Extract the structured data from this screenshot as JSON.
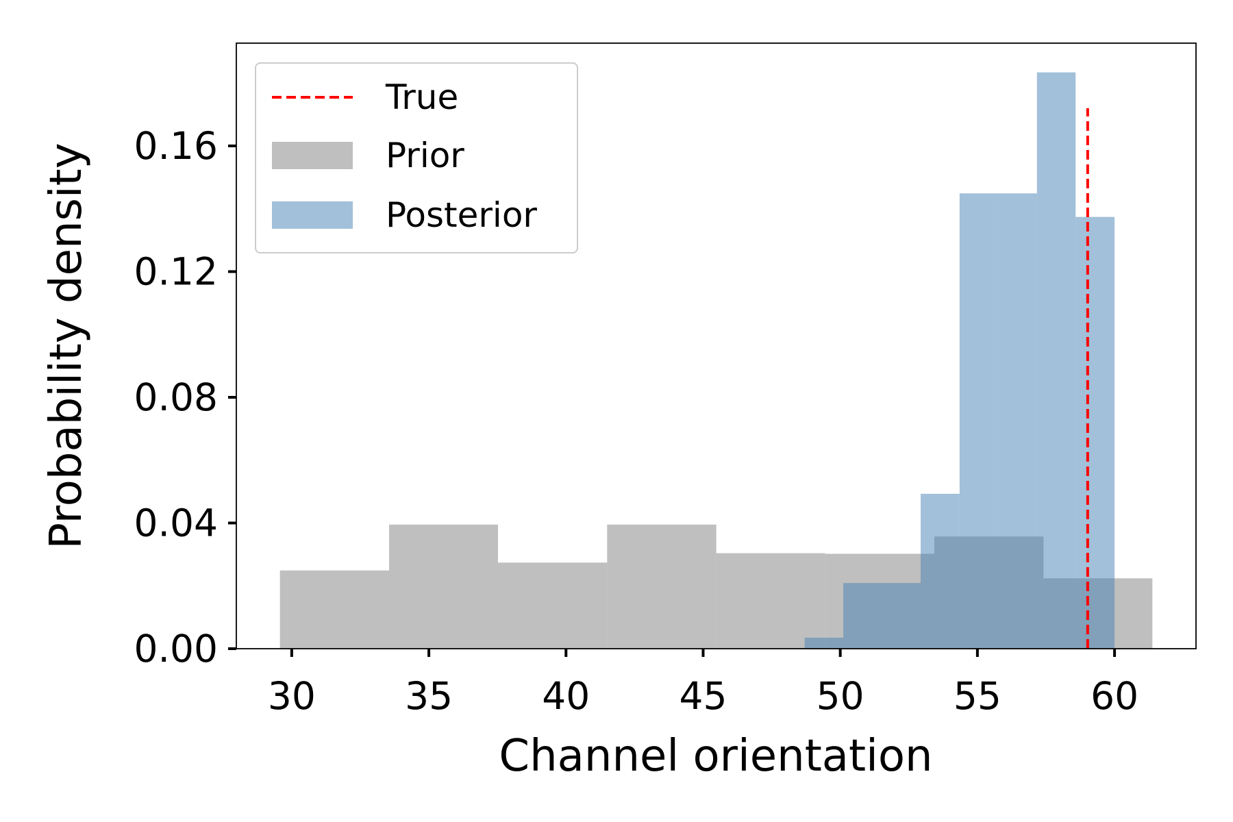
{
  "chart_data": {
    "type": "histogram",
    "xlabel": "Channel orientation",
    "ylabel": "Probability density",
    "xlim": [
      27.98,
      62.97
    ],
    "ylim": [
      0,
      0.1927
    ],
    "xticks": [
      30,
      35,
      40,
      45,
      50,
      55,
      60
    ],
    "yticks": [
      {
        "value": 0,
        "label": "0.00"
      },
      0.04,
      0.08,
      0.12,
      0.16
    ],
    "legend": "upper left",
    "true_line": {
      "name": "True",
      "value": 59.02,
      "top": 0.172,
      "color": "#ff0000"
    },
    "series": [
      {
        "name": "Prior",
        "color": "gray",
        "alpha": 0.5,
        "bins": [
          29.57,
          33.55,
          37.52,
          41.5,
          45.48,
          49.45,
          53.43,
          57.41,
          61.38
        ],
        "values": [
          0.0249,
          0.0395,
          0.0274,
          0.0395,
          0.0304,
          0.0302,
          0.0357,
          0.0224
        ]
      },
      {
        "name": "Posterior",
        "color": "steelblue",
        "alpha": 0.5,
        "bins": [
          48.7,
          50.11,
          51.52,
          52.93,
          54.35,
          55.76,
          57.17,
          58.58,
          60.0
        ],
        "values": [
          0.0035,
          0.0209,
          0.0209,
          0.0493,
          0.1449,
          0.1449,
          0.1834,
          0.1374
        ]
      }
    ]
  }
}
